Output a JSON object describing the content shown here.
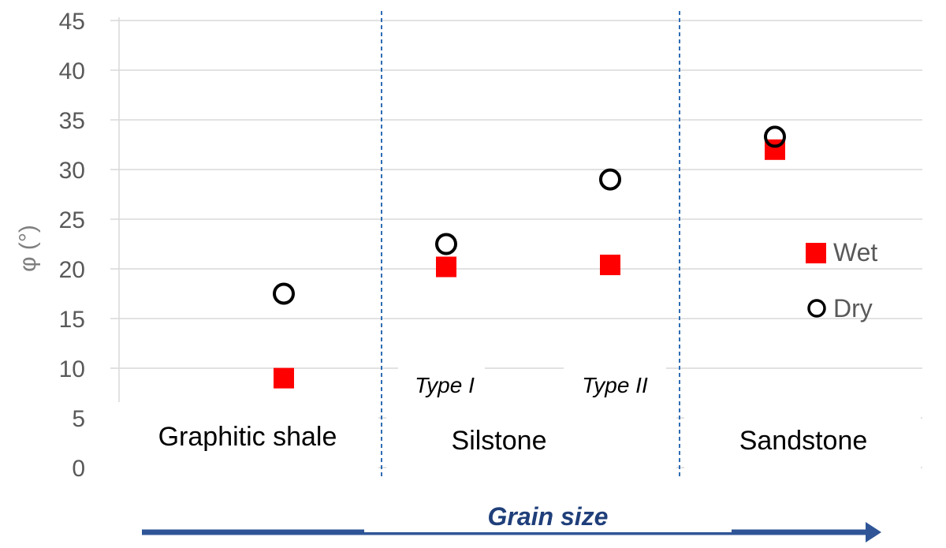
{
  "chart_data": {
    "type": "scatter",
    "title": "",
    "xlabel": "Grain size",
    "ylabel": "φ (°)",
    "ylim": [
      0,
      45
    ],
    "yticks": [
      0,
      5,
      10,
      15,
      20,
      25,
      30,
      35,
      40,
      45
    ],
    "grid": "horizontal",
    "legend_position": "right",
    "groups": [
      "Graphitic shale",
      "Silstone",
      "Sandstone"
    ],
    "subgroups": [
      "Type I",
      "Type II"
    ],
    "categories": [
      "Graphitic shale",
      "Silstone Type I",
      "Silstone Type II",
      "Sandstone"
    ],
    "series": [
      {
        "name": "Wet",
        "marker": "square",
        "color": "#ff0000",
        "values": [
          9,
          20.2,
          20.4,
          32
        ]
      },
      {
        "name": "Dry",
        "marker": "circle",
        "color": "#000000",
        "values": [
          17.5,
          22.5,
          29,
          33.3
        ]
      }
    ]
  },
  "colors": {
    "wet": "#ff0000",
    "dry": "#000000",
    "divider": "#2e6db4",
    "arrow": "#2f5597",
    "grid": "#d9d9d9"
  }
}
